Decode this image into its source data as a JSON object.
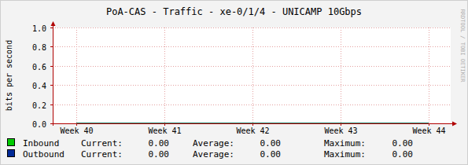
{
  "chart_data": {
    "type": "line",
    "title": "PoA-CAS - Traffic - xe-0/1/4 - UNICAMP 10Gbps",
    "y_label": "bits per second",
    "watermark": "RRDTOOL / TOBI OETIKER",
    "x": [
      40,
      41,
      42,
      43,
      44
    ],
    "xlim": [
      39.73,
      44.25
    ],
    "xticks": [
      {
        "value": 40,
        "label": "Week 40"
      },
      {
        "value": 41,
        "label": "Week 41"
      },
      {
        "value": 42,
        "label": "Week 42"
      },
      {
        "value": 43,
        "label": "Week 43"
      },
      {
        "value": 44,
        "label": "Week 44"
      }
    ],
    "ylim": [
      0,
      1
    ],
    "yticks": [
      {
        "value": 0,
        "label": "0.0"
      },
      0.2,
      0.4,
      0.6,
      0.8,
      {
        "value": 1,
        "label": "1.0"
      }
    ],
    "grid": true,
    "legend": "bottom",
    "stat_labels": [
      "Current:",
      "Average:",
      "Maximum:"
    ],
    "series": [
      {
        "name": "Inbound",
        "type": "area",
        "color": "#00cc00",
        "values": [
          0,
          0,
          0,
          0,
          0
        ],
        "stats": [
          {
            "value": 0,
            "label": "0.00"
          },
          {
            "value": 0,
            "label": "0.00"
          },
          {
            "value": 0,
            "label": "0.00"
          }
        ]
      },
      {
        "name": "Outbound",
        "type": "line",
        "color": "#002a97",
        "values": [
          0,
          0,
          0,
          0,
          0
        ],
        "stats": [
          {
            "value": 0,
            "label": "0.00"
          },
          {
            "value": 0,
            "label": "0.00"
          },
          {
            "value": 0,
            "label": "0.00"
          }
        ]
      }
    ]
  }
}
